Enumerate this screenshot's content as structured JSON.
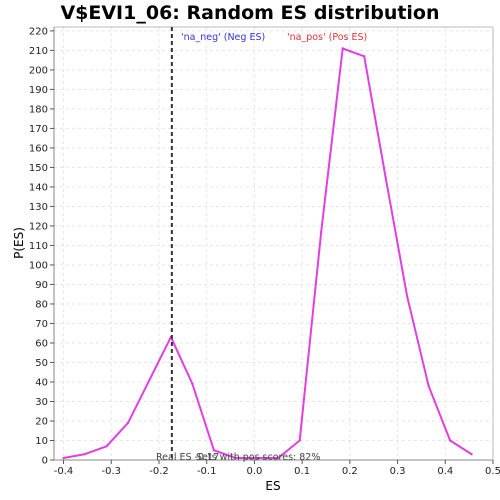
{
  "chart_data": {
    "type": "line",
    "title": "V$EVI1_06: Random ES distribution",
    "xlabel": "ES",
    "ylabel": "P(ES)",
    "xlim": [
      -0.42,
      0.5
    ],
    "ylim": [
      0,
      222
    ],
    "xticks": [
      -0.4,
      -0.3,
      -0.2,
      -0.1,
      0.0,
      0.1,
      0.2,
      0.3,
      0.4,
      0.5
    ],
    "xtick_labels": [
      "-0.4",
      "-0.3",
      "-0.2",
      "-0.1",
      "0.0",
      "0.1",
      "0.2",
      "0.3",
      "0.4",
      "0.5"
    ],
    "yticks": [
      0,
      10,
      20,
      30,
      40,
      50,
      60,
      70,
      80,
      90,
      100,
      110,
      120,
      130,
      140,
      150,
      160,
      170,
      180,
      190,
      200,
      210,
      220
    ],
    "ytick_labels": [
      "0",
      "10",
      "20",
      "30",
      "40",
      "50",
      "60",
      "70",
      "80",
      "90",
      "100",
      "110",
      "120",
      "130",
      "140",
      "150",
      "160",
      "170",
      "180",
      "190",
      "200",
      "210",
      "220"
    ],
    "grid": true,
    "series": [
      {
        "color": "#e040e0",
        "x": [
          -0.4,
          -0.355,
          -0.31,
          -0.265,
          -0.175,
          -0.13,
          -0.085,
          -0.04,
          0.005,
          0.05,
          0.095,
          0.14,
          0.185,
          0.23,
          0.275,
          0.32,
          0.365,
          0.41,
          0.455
        ],
        "y": [
          1,
          3,
          7,
          19,
          63,
          39,
          5,
          1,
          1,
          1,
          10,
          117,
          211,
          207,
          145,
          84,
          38,
          10,
          3
        ]
      }
    ],
    "real_es": -0.173,
    "real_es_label": "Real ES -0.17",
    "annotations": {
      "neg_label": "'na_neg' (Neg ES)",
      "neg_color": "#3333dd",
      "pos_label": "'na_pos' (Pos ES)",
      "pos_color": "#dd3333",
      "pos_scores_label": "Sets with pos scores: 82%",
      "pos_scores_color": "#444444"
    }
  }
}
